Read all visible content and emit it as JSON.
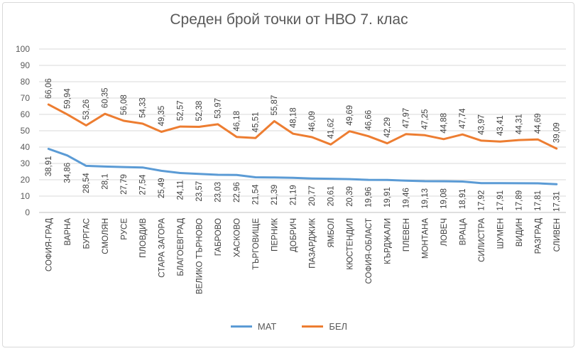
{
  "chart_data": {
    "type": "line",
    "title": "Среден брой точки от НВО 7. клас",
    "categories": [
      "СОФИЯ-ГРАД",
      "ВАРНА",
      "БУРГАС",
      "СМОЛЯН",
      "РУСЕ",
      "ПЛОВДИВ",
      "СТАРА ЗАГОРА",
      "БЛАГОЕВГРАД",
      "ВЕЛИКО ТЪРНОВО",
      "ГАБРОВО",
      "ХАСКОВО",
      "ТЪРГОВИЩЕ",
      "ПЕРНИК",
      "ДОБРИЧ",
      "ПАЗАРДЖИК",
      "ЯМБОЛ",
      "КЮСТЕНДИЛ",
      "СОФИЯ-ОБЛАСТ",
      "КЪРДЖАЛИ",
      "ПЛЕВЕН",
      "МОНТАНА",
      "ЛОВЕЧ",
      "ВРАЦА",
      "СИЛИСТРА",
      "ШУМЕН",
      "ВИДИН",
      "РАЗГРАД",
      "СЛИВЕН"
    ],
    "series": [
      {
        "name": "МАТ",
        "color": "#5B9BD5",
        "values": [
          38.91,
          34.86,
          28.54,
          28.1,
          27.79,
          27.54,
          25.49,
          24.11,
          23.57,
          23.03,
          22.96,
          21.54,
          21.39,
          21.19,
          20.77,
          20.61,
          20.39,
          19.96,
          19.91,
          19.46,
          19.13,
          19.08,
          18.91,
          17.92,
          17.91,
          17.89,
          17.81,
          17.31
        ],
        "labels": [
          "38,91",
          "34,86",
          "28,54",
          "28,1",
          "27,79",
          "27,54",
          "25,49",
          "24,11",
          "23,57",
          "23,03",
          "22,96",
          "21,54",
          "21,39",
          "21,19",
          "20,77",
          "20,61",
          "20,39",
          "19,96",
          "19,91",
          "19,46",
          "19,13",
          "19,08",
          "18,91",
          "17,92",
          "17,91",
          "17,89",
          "17,81",
          "17,31"
        ]
      },
      {
        "name": "БЕЛ",
        "color": "#ED7D31",
        "values": [
          66.06,
          59.94,
          53.26,
          60.35,
          56.08,
          54.33,
          49.35,
          52.57,
          52.38,
          53.97,
          46.18,
          45.51,
          55.87,
          48.18,
          46.09,
          41.62,
          49.69,
          46.66,
          42.29,
          47.97,
          47.25,
          44.88,
          47.74,
          43.97,
          43.41,
          44.31,
          44.69,
          39.09
        ],
        "labels": [
          "66,06",
          "59,94",
          "53,26",
          "60,35",
          "56,08",
          "54,33",
          "49,35",
          "52,57",
          "52,38",
          "53,97",
          "46,18",
          "45,51",
          "55,87",
          "48,18",
          "46,09",
          "41,62",
          "49,69",
          "46,66",
          "42,29",
          "47,97",
          "47,25",
          "44,88",
          "47,74",
          "43,97",
          "43,41",
          "44,31",
          "44,69",
          "39,09"
        ]
      }
    ],
    "ylim": [
      0,
      100
    ],
    "yticks": [
      0,
      10,
      20,
      30,
      40,
      50,
      60,
      70,
      80,
      90,
      100
    ],
    "grid": true,
    "legend": "bottom"
  }
}
